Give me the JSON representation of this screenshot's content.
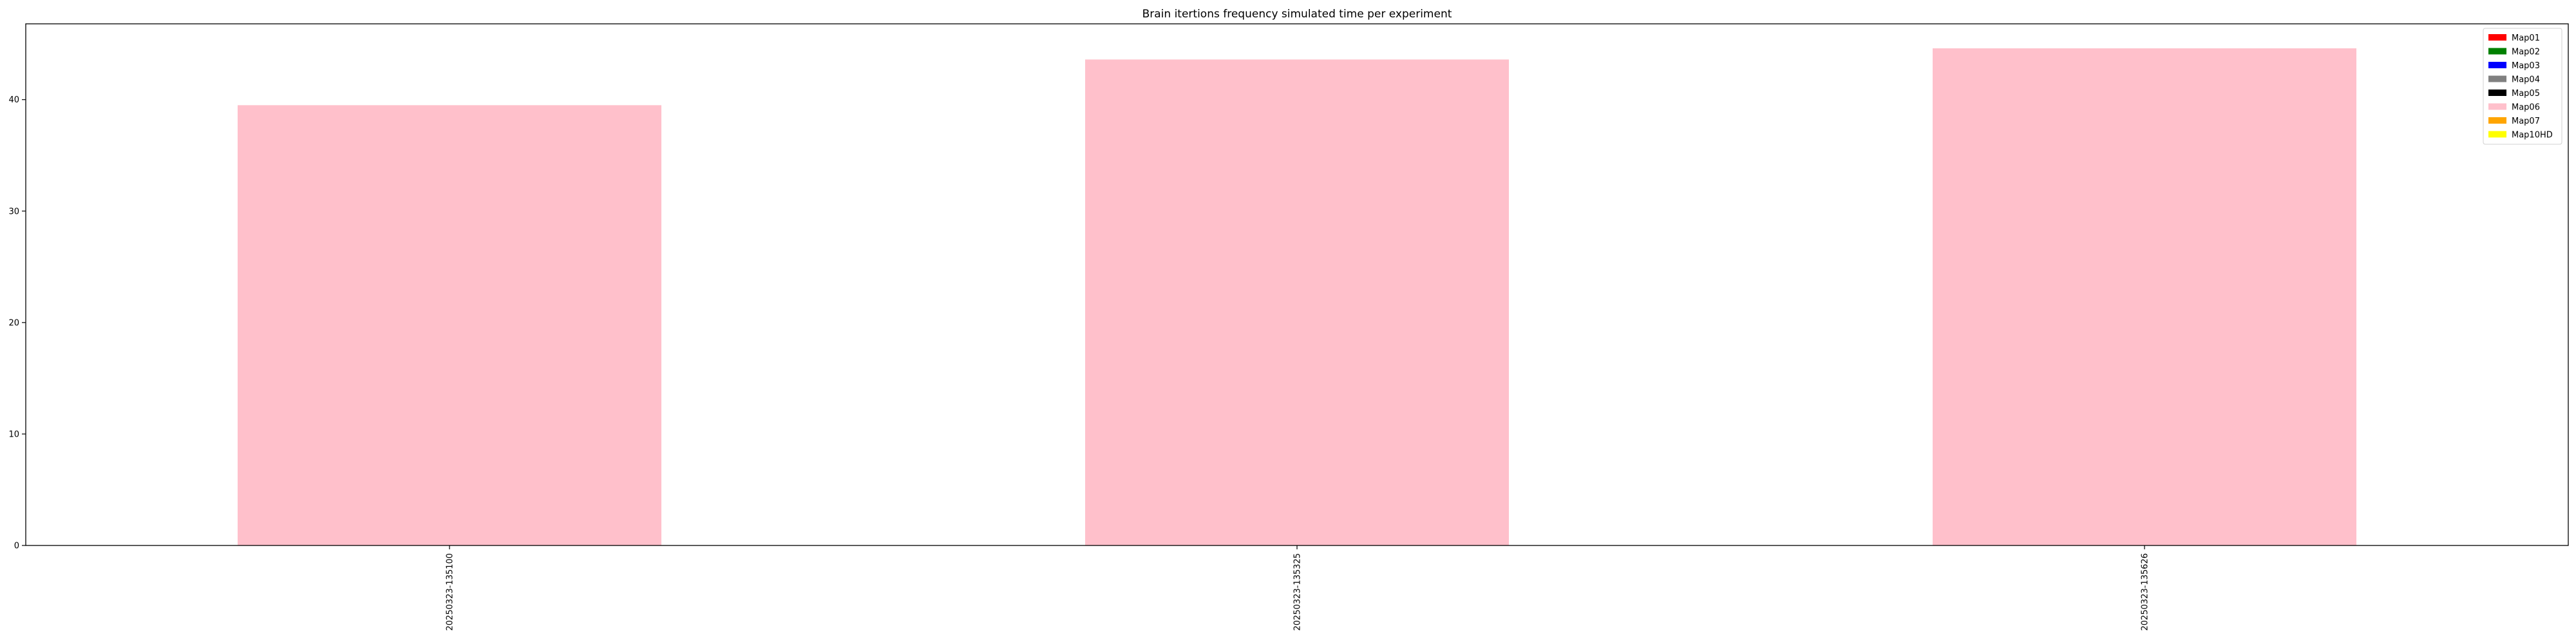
{
  "chart_data": {
    "type": "bar",
    "title": "Brain itertions frequency simulated time per experiment",
    "xlabel": "",
    "ylabel": "",
    "categories": [
      "20250323-135100",
      "20250323-135325",
      "20250323-135626"
    ],
    "series": [
      {
        "name": "Map01",
        "color": "#ff0000",
        "values": [
          0,
          0,
          0
        ]
      },
      {
        "name": "Map02",
        "color": "#008000",
        "values": [
          0,
          0,
          0
        ]
      },
      {
        "name": "Map03",
        "color": "#0000ff",
        "values": [
          0,
          0,
          0
        ]
      },
      {
        "name": "Map04",
        "color": "#808080",
        "values": [
          0,
          0,
          0
        ]
      },
      {
        "name": "Map05",
        "color": "#000000",
        "values": [
          0,
          0,
          0
        ]
      },
      {
        "name": "Map06",
        "color": "#ffc0cb",
        "values": [
          39.5,
          43.6,
          44.6
        ]
      },
      {
        "name": "Map07",
        "color": "#ffa500",
        "values": [
          0,
          0,
          0
        ]
      },
      {
        "name": "Map10HD",
        "color": "#ffff00",
        "values": [
          0,
          0,
          0
        ]
      }
    ],
    "yticks": [
      0,
      10,
      20,
      30,
      40
    ],
    "ylim": [
      0,
      46.8
    ],
    "stacked": true,
    "grid": false,
    "legend_position": "top-right"
  }
}
